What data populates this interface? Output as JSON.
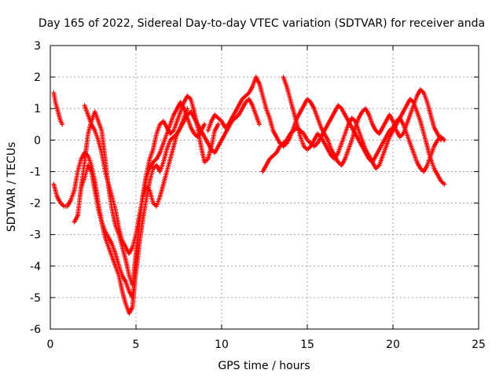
{
  "chart_data": {
    "type": "scatter",
    "title": "Day 165 of 2022, Sidereal Day-to-day VTEC variation (SDTVAR) for receiver anda",
    "xlabel": "GPS time / hours",
    "ylabel": "SDTVAR / TECUs",
    "xlim": [
      0,
      25
    ],
    "ylim": [
      -6,
      3
    ],
    "xticks": [
      0,
      5,
      10,
      15,
      20,
      25
    ],
    "yticks": [
      -6,
      -5,
      -4,
      -3,
      -2,
      -1,
      0,
      1,
      2,
      3
    ],
    "grid": true,
    "marker": "+",
    "color": "#ff0000",
    "series": [
      {
        "name": "s1",
        "x": [
          0.2,
          0.3,
          0.4,
          0.5,
          0.6,
          0.7
        ],
        "y": [
          1.5,
          1.2,
          1.0,
          0.8,
          0.6,
          0.5
        ]
      },
      {
        "name": "s2",
        "x": [
          0.2,
          0.4,
          0.6,
          0.8,
          1.0,
          1.2,
          1.4,
          1.6,
          1.8,
          2.0,
          2.2,
          2.4,
          2.6,
          2.8,
          3.0,
          3.2,
          3.4,
          3.6,
          3.8,
          4.0,
          4.2,
          4.4,
          4.6,
          4.8,
          5.0,
          5.2,
          5.4,
          5.6,
          5.8,
          6.0,
          6.2,
          6.4,
          6.6,
          6.8,
          7.0,
          7.2,
          7.4,
          7.6,
          7.8,
          8.0,
          8.2,
          8.4,
          8.6,
          8.8,
          9.0
        ],
        "y": [
          -1.4,
          -1.8,
          -2.0,
          -2.1,
          -2.1,
          -1.9,
          -1.6,
          -1.0,
          -0.6,
          -0.4,
          -0.5,
          -0.8,
          -1.3,
          -2.0,
          -2.6,
          -3.1,
          -3.4,
          -3.7,
          -4.0,
          -4.3,
          -4.8,
          -5.2,
          -5.5,
          -5.3,
          -4.0,
          -2.6,
          -1.8,
          -1.2,
          -0.9,
          -0.7,
          -0.6,
          -0.4,
          -0.1,
          0.2,
          0.5,
          0.8,
          1.0,
          1.2,
          1.0,
          0.7,
          0.4,
          0.2,
          0.1,
          0.3,
          0.5
        ]
      },
      {
        "name": "s3",
        "x": [
          1.4,
          1.6,
          1.8,
          2.0,
          2.2,
          2.4,
          2.6,
          2.8,
          3.0,
          3.2,
          3.4,
          3.6,
          3.8,
          4.0,
          4.2,
          4.4,
          4.6,
          4.8,
          5.0,
          5.2,
          5.4,
          5.6,
          5.8,
          6.0,
          6.2,
          6.4,
          6.6,
          6.8,
          7.0,
          7.2,
          7.4,
          7.6,
          7.8,
          8.0,
          8.2,
          8.4,
          8.6,
          8.8,
          9.0,
          9.2,
          9.4,
          9.6,
          9.8
        ],
        "y": [
          -2.6,
          -2.4,
          -1.5,
          -0.7,
          0.2,
          0.6,
          0.9,
          0.6,
          0.3,
          -0.6,
          -1.5,
          -2.2,
          -2.7,
          -3.0,
          -3.4,
          -3.8,
          -4.3,
          -4.6,
          -3.6,
          -2.6,
          -1.8,
          -1.1,
          -0.6,
          -0.3,
          0.2,
          0.5,
          0.6,
          0.4,
          0.2,
          0.3,
          0.6,
          0.9,
          1.2,
          1.4,
          1.3,
          0.9,
          0.4,
          -0.2,
          -0.7,
          -0.6,
          -0.2,
          0.3,
          0.5
        ]
      },
      {
        "name": "s4",
        "x": [
          1.8,
          2.0,
          2.2,
          2.4,
          2.6,
          2.8,
          3.0,
          3.2,
          3.4,
          3.6,
          3.8,
          4.0,
          4.2,
          4.4,
          4.6,
          4.8,
          5.0,
          5.2,
          5.4,
          5.6,
          5.8,
          6.0,
          6.2,
          6.4,
          6.6,
          6.8,
          7.0,
          7.2,
          7.4,
          7.6,
          7.8,
          8.0
        ],
        "y": [
          -1.5,
          -1.2,
          -0.8,
          -1.0,
          -1.6,
          -2.2,
          -2.6,
          -2.9,
          -3.1,
          -3.3,
          -3.6,
          -4.0,
          -4.3,
          -4.5,
          -4.8,
          -5.0,
          -4.2,
          -3.3,
          -2.5,
          -1.9,
          -1.3,
          -0.9,
          -0.8,
          -1.0,
          -0.7,
          -0.3,
          0.0,
          0.1,
          0.2,
          0.4,
          0.7,
          1.0
        ]
      },
      {
        "name": "s5",
        "x": [
          2.0,
          2.2,
          2.4,
          2.6,
          2.8,
          3.0,
          3.2,
          3.4,
          3.6,
          3.8,
          4.0,
          4.2,
          4.4,
          4.6,
          4.8,
          5.0,
          5.2,
          5.4,
          5.6,
          5.8,
          6.0,
          6.2,
          6.4,
          6.6,
          6.8,
          7.0,
          7.2,
          7.4,
          7.6,
          7.8,
          8.0,
          8.2,
          8.4,
          8.6,
          8.8,
          9.0,
          9.2,
          9.4,
          9.6,
          9.8,
          10.0,
          10.2,
          10.4,
          10.6,
          10.8,
          11.0,
          11.2,
          11.4,
          11.6,
          11.8,
          12.0,
          12.2
        ],
        "y": [
          1.1,
          0.8,
          0.5,
          0.3,
          0.0,
          -0.4,
          -1.0,
          -1.4,
          -1.8,
          -2.2,
          -2.8,
          -3.2,
          -3.4,
          -3.6,
          -3.4,
          -3.0,
          -2.4,
          -1.8,
          -1.5,
          -1.6,
          -2.0,
          -2.1,
          -1.8,
          -1.4,
          -1.0,
          -0.6,
          -0.2,
          0.2,
          0.4,
          0.6,
          0.8,
          0.9,
          0.7,
          0.5,
          0.3,
          0.1,
          -0.1,
          -0.3,
          -0.4,
          -0.2,
          0.0,
          0.2,
          0.4,
          0.6,
          0.7,
          0.8,
          1.0,
          1.2,
          1.3,
          1.1,
          0.8,
          0.5
        ]
      },
      {
        "name": "s6",
        "x": [
          9.2,
          9.4,
          9.6,
          9.8,
          10.0,
          10.2,
          10.4,
          10.6,
          10.8,
          11.0,
          11.2,
          11.4,
          11.6,
          11.8,
          12.0,
          12.2,
          12.4,
          12.6,
          12.8,
          13.0,
          13.2,
          13.4,
          13.6,
          13.8,
          14.0,
          14.2,
          14.4,
          14.6,
          14.8,
          15.0,
          15.2,
          15.4,
          15.6,
          15.8,
          16.0,
          16.2,
          16.4,
          16.6,
          16.8,
          17.0,
          17.2,
          17.4,
          17.6,
          17.8,
          18.0,
          18.2,
          18.4,
          18.6,
          18.8,
          19.0,
          19.2,
          19.4,
          19.6,
          19.8,
          20.0,
          20.2,
          20.4,
          20.6,
          20.8,
          21.0,
          21.2,
          21.4,
          21.6,
          21.8,
          22.0,
          22.2,
          22.4,
          22.6,
          22.8
        ],
        "y": [
          0.3,
          0.6,
          0.8,
          0.7,
          0.6,
          0.4,
          0.5,
          0.7,
          0.9,
          1.1,
          1.3,
          1.4,
          1.5,
          1.7,
          2.0,
          1.8,
          1.4,
          1.0,
          0.7,
          0.3,
          0.1,
          -0.1,
          -0.2,
          -0.1,
          0.1,
          0.4,
          0.7,
          0.9,
          1.1,
          1.3,
          1.2,
          1.0,
          0.7,
          0.4,
          0.2,
          0.0,
          -0.3,
          -0.5,
          -0.7,
          -0.8,
          -0.6,
          -0.3,
          0.0,
          0.4,
          0.7,
          0.9,
          1.0,
          0.8,
          0.5,
          0.3,
          0.2,
          0.4,
          0.6,
          0.8,
          0.6,
          0.3,
          0.1,
          0.2,
          0.5,
          0.8,
          1.1,
          1.4,
          1.6,
          1.5,
          1.2,
          0.8,
          0.4,
          0.2,
          0.0
        ]
      },
      {
        "name": "s7",
        "x": [
          12.4,
          12.6,
          12.8,
          13.0,
          13.2,
          13.4,
          13.6,
          13.8,
          14.0,
          14.2,
          14.4,
          14.6,
          14.8,
          15.0,
          15.2,
          15.4,
          15.6,
          15.8,
          16.0,
          16.2,
          16.4,
          16.6,
          16.8,
          17.0,
          17.2,
          17.4,
          17.6,
          17.8,
          18.0,
          18.2,
          18.4,
          18.6,
          18.8,
          19.0,
          19.2,
          19.4,
          19.6,
          19.8,
          20.0,
          20.2,
          20.4,
          20.6,
          20.8,
          21.0,
          21.2,
          21.4,
          21.6,
          21.8,
          22.0,
          22.2,
          22.4,
          22.6,
          22.8,
          23.0
        ],
        "y": [
          -1.0,
          -0.8,
          -0.6,
          -0.5,
          -0.4,
          -0.2,
          -0.1,
          0.0,
          0.2,
          0.3,
          0.4,
          0.3,
          0.2,
          0.0,
          -0.1,
          -0.2,
          -0.1,
          0.1,
          0.3,
          0.5,
          0.7,
          0.9,
          1.1,
          1.0,
          0.8,
          0.6,
          0.4,
          0.2,
          0.0,
          -0.2,
          -0.4,
          -0.6,
          -0.7,
          -0.5,
          -0.3,
          -0.1,
          0.1,
          0.3,
          0.4,
          0.6,
          0.7,
          0.5,
          0.2,
          -0.1,
          -0.4,
          -0.7,
          -0.9,
          -1.0,
          -0.8,
          -0.5,
          -0.2,
          0.0,
          0.1,
          0.0
        ]
      },
      {
        "name": "s8",
        "x": [
          13.6,
          13.8,
          14.0,
          14.2,
          14.4,
          14.6,
          14.8,
          15.0,
          15.2,
          15.4,
          15.6,
          15.8,
          16.0,
          16.2,
          16.4,
          16.6,
          16.8,
          17.0,
          17.2,
          17.4,
          17.6,
          17.8,
          18.0,
          18.2,
          18.4,
          18.6,
          18.8,
          19.0,
          19.2,
          19.4,
          19.6,
          19.8,
          20.0,
          20.2,
          20.4,
          20.6,
          20.8,
          21.0,
          21.2,
          21.4,
          21.6,
          21.8,
          22.0,
          22.2,
          22.4,
          22.6,
          22.8,
          23.0
        ],
        "y": [
          2.0,
          1.7,
          1.3,
          0.9,
          0.5,
          0.1,
          -0.2,
          -0.3,
          -0.2,
          0.0,
          0.2,
          0.1,
          -0.1,
          -0.3,
          -0.5,
          -0.6,
          -0.4,
          -0.1,
          0.2,
          0.5,
          0.7,
          0.6,
          0.3,
          0.0,
          -0.3,
          -0.5,
          -0.7,
          -0.9,
          -0.8,
          -0.5,
          -0.2,
          0.1,
          0.3,
          0.5,
          0.7,
          0.9,
          1.1,
          1.3,
          1.2,
          0.9,
          0.6,
          0.2,
          -0.2,
          -0.6,
          -0.9,
          -1.1,
          -1.3,
          -1.4
        ]
      }
    ]
  }
}
